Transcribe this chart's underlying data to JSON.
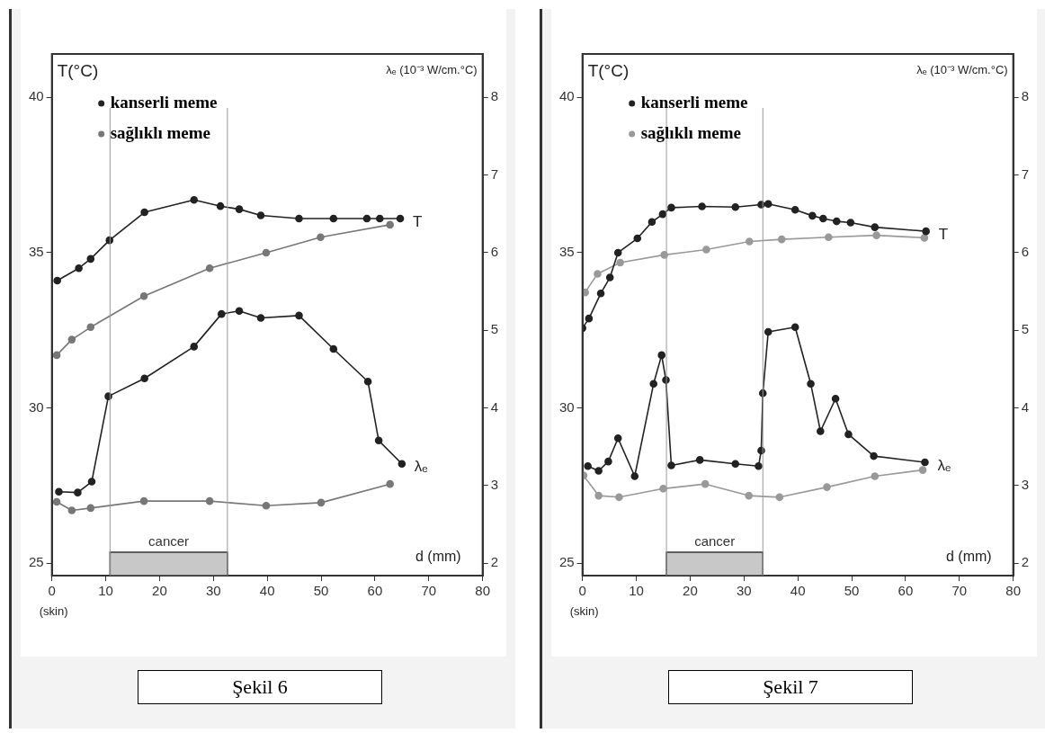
{
  "chart_data": [
    {
      "type": "line",
      "title": "Şekil 6",
      "xlabel": "d (mm)",
      "ylabel": "T(°C)",
      "y2label": "λₑ (10⁻³ W/cm.°C)",
      "xlim": [
        0,
        80
      ],
      "xticks": [
        0,
        10,
        20,
        30,
        40,
        50,
        60,
        70,
        80
      ],
      "ylim": [
        24.6,
        41.4
      ],
      "yticks": [
        25,
        30,
        35,
        40
      ],
      "y2lim": [
        1.84,
        8.56
      ],
      "y2ticks": [
        2,
        3,
        4,
        5,
        6,
        7,
        8
      ],
      "grid": false,
      "legend": "top left",
      "marker": "circle",
      "line_style": "solid",
      "bands": [
        {
          "axis": "x",
          "from": 10.8,
          "to": 32.6,
          "label": "cancer",
          "color": "#c8c8c8"
        }
      ],
      "ref_lines": [
        {
          "axis": "x",
          "value": 10.8,
          "color": "#999999"
        },
        {
          "axis": "x",
          "value": 32.6,
          "color": "#999999"
        }
      ],
      "annotations": [
        "(skin)",
        {
          "text": "T",
          "x": 64.7,
          "y": 36.1
        },
        {
          "text": "λₑ",
          "x": 65.0,
          "y": 28.2
        }
      ],
      "series": [
        {
          "name": "kanserli meme",
          "color": "#222222",
          "x": [
            1.0,
            5.0,
            7.2,
            10.7,
            17.2,
            26.4,
            31.3,
            34.8,
            38.8,
            45.9,
            52.3,
            58.5,
            60.9,
            64.7
          ],
          "values": [
            34.1,
            34.5,
            34.8,
            35.4,
            36.3,
            36.7,
            36.5,
            36.4,
            36.2,
            36.1,
            36.1,
            36.1,
            36.1,
            36.1
          ]
        },
        {
          "name": "sağlıklı meme",
          "color": "#777777",
          "x": [
            0.9,
            3.7,
            7.2,
            17.1,
            29.3,
            39.8,
            49.9,
            62.8
          ],
          "values": [
            31.7,
            32.2,
            32.6,
            33.6,
            34.5,
            35.0,
            35.5,
            35.9
          ]
        },
        {
          "color": "#222222",
          "axis": "y2",
          "x": [
            1.3,
            4.8,
            7.4,
            10.5,
            17.2,
            26.4,
            31.5,
            34.8,
            38.8,
            45.9,
            52.3,
            58.7,
            60.7,
            65.0
          ],
          "values": [
            2.92,
            2.91,
            3.05,
            4.15,
            4.38,
            4.79,
            5.21,
            5.25,
            5.16,
            5.19,
            4.76,
            4.34,
            3.58,
            3.28
          ]
        },
        {
          "color": "#777777",
          "axis": "y2",
          "x": [
            0.9,
            3.7,
            7.2,
            17.1,
            29.3,
            39.8,
            50.0,
            62.8
          ],
          "values": [
            2.79,
            2.68,
            2.71,
            2.8,
            2.8,
            2.74,
            2.78,
            3.02
          ]
        }
      ]
    },
    {
      "type": "line",
      "title": "Şekil 7",
      "xlabel": "d (mm)",
      "ylabel": "T(°C)",
      "y2label": "λₑ (10⁻³ W/cm.°C)",
      "xlim": [
        0,
        80
      ],
      "xticks": [
        0,
        10,
        20,
        30,
        40,
        50,
        60,
        70,
        80
      ],
      "ylim": [
        24.6,
        41.4
      ],
      "yticks": [
        25,
        30,
        35,
        40
      ],
      "y2lim": [
        1.84,
        8.56
      ],
      "y2ticks": [
        2,
        3,
        4,
        5,
        6,
        7,
        8
      ],
      "grid": false,
      "legend": "top left",
      "marker": "circle",
      "line_style": "solid",
      "bands": [
        {
          "axis": "x",
          "from": 15.6,
          "to": 33.5,
          "label": "cancer",
          "color": "#c8c8c8"
        }
      ],
      "ref_lines": [
        {
          "axis": "x",
          "value": 15.6,
          "color": "#999999"
        },
        {
          "axis": "x",
          "value": 33.5,
          "color": "#999999"
        }
      ],
      "annotations": [
        "(skin)",
        {
          "text": "T",
          "x": 63.8,
          "y": 35.69
        },
        {
          "text": "λₑ",
          "x": 63.6,
          "y": 28.25
        }
      ],
      "series": [
        {
          "name": "kanserli meme",
          "color": "#222222",
          "x": [
            0.0,
            1.2,
            3.4,
            5.1,
            6.6,
            10.2,
            12.9,
            14.9,
            16.5,
            22.2,
            28.4,
            33.2,
            34.5,
            39.5,
            42.7,
            44.7,
            47.2,
            49.8,
            54.3,
            63.8
          ],
          "values": [
            32.57,
            32.88,
            33.69,
            34.2,
            35.0,
            35.46,
            35.99,
            36.24,
            36.45,
            36.49,
            36.47,
            36.55,
            36.57,
            36.38,
            36.19,
            36.1,
            36.01,
            35.97,
            35.82,
            35.69
          ]
        },
        {
          "name": "sağlıklı meme",
          "color": "#999999",
          "x": [
            0.5,
            2.8,
            7.0,
            15.2,
            23.0,
            31.0,
            37.0,
            45.7,
            54.6,
            63.5
          ],
          "values": [
            33.72,
            34.32,
            34.68,
            34.93,
            35.1,
            35.36,
            35.43,
            35.5,
            35.56,
            35.48
          ]
        },
        {
          "color": "#222222",
          "axis": "y2",
          "x": [
            1.0,
            3.0,
            4.8,
            6.6,
            9.7,
            13.2,
            14.7,
            15.5,
            16.5,
            21.8,
            28.4,
            32.7,
            33.2,
            33.5,
            34.5,
            39.5,
            42.4,
            44.2,
            47.0,
            49.4,
            54.1,
            63.6
          ],
          "values": [
            3.25,
            3.19,
            3.31,
            3.61,
            3.12,
            4.31,
            4.68,
            4.36,
            3.26,
            3.33,
            3.28,
            3.25,
            3.45,
            4.19,
            4.98,
            5.04,
            4.31,
            3.7,
            4.12,
            3.66,
            3.38,
            3.3
          ]
        },
        {
          "color": "#999999",
          "axis": "y2",
          "x": [
            0.2,
            3.0,
            6.8,
            15.0,
            22.8,
            30.9,
            36.6,
            45.4,
            54.3,
            63.2
          ],
          "values": [
            3.13,
            2.87,
            2.85,
            2.96,
            3.02,
            2.87,
            2.85,
            2.98,
            3.12,
            3.2
          ]
        }
      ]
    }
  ]
}
